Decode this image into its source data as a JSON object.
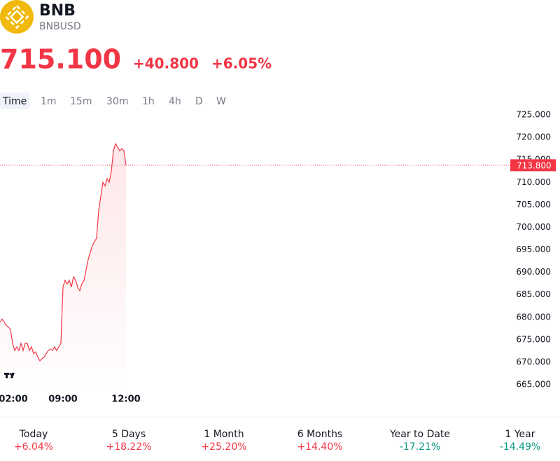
{
  "header": {
    "symbol": "BNB",
    "ticker": "BNBUSD",
    "price": "715.100",
    "change": "+40.800",
    "change_percent": "+6.05%"
  },
  "intervals": [
    "Time",
    "1m",
    "15m",
    "30m",
    "1h",
    "4h",
    "D",
    "W"
  ],
  "chart_data": {
    "type": "line",
    "series": [
      {
        "color": "#f23645",
        "values": [
          678.9,
          679.6,
          678.9,
          678.2,
          677.8,
          677.3,
          674.2,
          672.6,
          673.4,
          672.6,
          674.2,
          672.6,
          674.2,
          674.2,
          672.6,
          673.4,
          671.9,
          672.3,
          671.1,
          670.3,
          670.8,
          671.1,
          671.9,
          672.6,
          672.9,
          672.6,
          673.4,
          672.6,
          673.4,
          674.2,
          686.7,
          688.2,
          687.4,
          688.2,
          686.7,
          689.0,
          688.2,
          686.7,
          685.9,
          687.4,
          688.2,
          690.5,
          692.9,
          694.4,
          696.0,
          696.8,
          697.6,
          703.8,
          706.9,
          710.0,
          709.2,
          710.8,
          710.0,
          712.4,
          717.0,
          718.6,
          717.8,
          717.0,
          717.5,
          717.0,
          713.8
        ]
      }
    ],
    "xlim": [
      0,
      242
    ],
    "xticks": [
      {
        "value": 6,
        "label": "02:00"
      },
      {
        "value": 30,
        "label": "09:00"
      },
      {
        "value": 60,
        "label": "12:00"
      }
    ],
    "ylim": [
      665,
      725
    ],
    "yticks": [
      {
        "value": 665,
        "label": "665.000"
      },
      {
        "value": 670,
        "label": "670.000"
      },
      {
        "value": 675,
        "label": "675.000"
      },
      {
        "value": 680,
        "label": "680.000"
      },
      {
        "value": 685,
        "label": "685.000"
      },
      {
        "value": 690,
        "label": "690.000"
      },
      {
        "value": 695,
        "label": "695.000"
      },
      {
        "value": 700,
        "label": "700.000"
      },
      {
        "value": 705,
        "label": "705.000"
      },
      {
        "value": 710,
        "label": "710.000"
      },
      {
        "value": 715,
        "label": "715.000"
      },
      {
        "value": 720,
        "label": "720.000"
      },
      {
        "value": 725,
        "label": "725.000"
      }
    ],
    "price_line": {
      "value": 713.8,
      "label": "713.800"
    }
  },
  "performance": [
    {
      "period": "Today",
      "value": "+6.04%"
    },
    {
      "period": "5 Days",
      "value": "+18.22%"
    },
    {
      "period": "1 Month",
      "value": "+25.20%"
    },
    {
      "period": "6 Months",
      "value": "+14.40%"
    },
    {
      "period": "Year to Date",
      "value": "-17.21%"
    },
    {
      "period": "1 Year",
      "value": "-14.49%"
    }
  ]
}
